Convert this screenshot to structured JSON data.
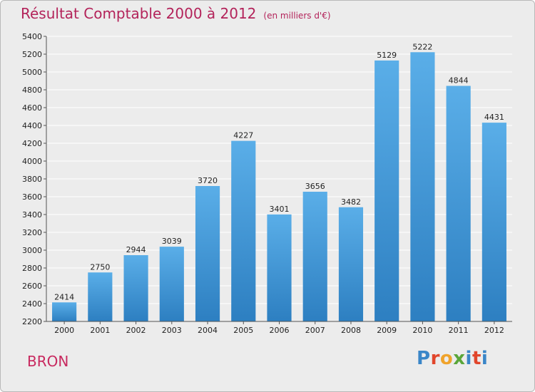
{
  "header": {
    "title": "Résultat Comptable 2000 à 2012",
    "subtitle": "(en milliers d'€)"
  },
  "location": "BRON",
  "logo": {
    "text": "Proxiti",
    "colors": [
      "#3a86c8",
      "#e1462c",
      "#f0a32b",
      "#5aa63a",
      "#3a86c8",
      "#e1462c",
      "#3a86c8"
    ]
  },
  "chart_data": {
    "type": "bar",
    "title": "Résultat Comptable 2000 à 2012",
    "subtitle": "(en milliers d'€)",
    "xlabel": "",
    "ylabel": "",
    "categories": [
      "2000",
      "2001",
      "2002",
      "2003",
      "2004",
      "2005",
      "2006",
      "2007",
      "2008",
      "2009",
      "2010",
      "2011",
      "2012"
    ],
    "values": [
      2414,
      2750,
      2944,
      3039,
      3720,
      4227,
      3401,
      3656,
      3482,
      5129,
      5222,
      4844,
      4431
    ],
    "ylim": [
      2200,
      5400
    ],
    "yticks": [
      2200,
      2400,
      2600,
      2800,
      3000,
      3200,
      3400,
      3600,
      3800,
      4000,
      4200,
      4400,
      4600,
      4800,
      5000,
      5200,
      5400
    ],
    "grid": true,
    "colors": {
      "bar_top": "#5aaee8",
      "bar_bottom": "#2d7fc1",
      "grid": "#ffffff",
      "axis": "#555555"
    }
  }
}
